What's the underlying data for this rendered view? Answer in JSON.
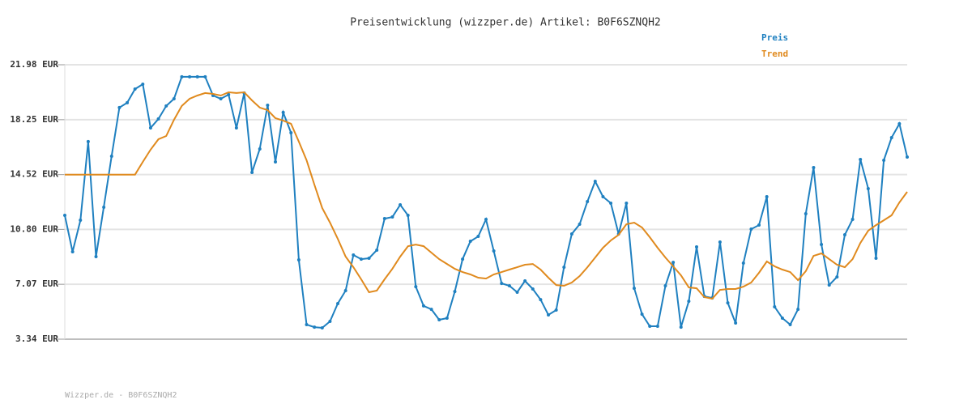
{
  "chart_data": {
    "type": "line",
    "title": "Preisentwicklung (wizzper.de) Artikel: B0F6SZNQH2",
    "footer": "Wizzper.de - B0F6SZNQH2",
    "ylim": [
      3.34,
      21.98
    ],
    "yticks": [
      {
        "value": 3.34,
        "label": "3.34 EUR"
      },
      {
        "value": 7.07,
        "label": "7.07 EUR"
      },
      {
        "value": 10.8,
        "label": "10.80 EUR"
      },
      {
        "value": 14.52,
        "label": "14.52 EUR"
      },
      {
        "value": 18.25,
        "label": "18.25 EUR"
      },
      {
        "value": 21.98,
        "label": "21.98 EUR"
      }
    ],
    "grid": true,
    "legend": "top-right",
    "series": [
      {
        "name": "Preis",
        "color": "#1f80c0",
        "markers": true,
        "values": [
          11.75,
          9.28,
          11.42,
          16.76,
          8.95,
          12.3,
          15.77,
          19.07,
          19.4,
          20.33,
          20.66,
          17.69,
          18.3,
          19.18,
          19.67,
          21.16,
          21.16,
          21.16,
          21.16,
          19.89,
          19.67,
          19.95,
          17.69,
          20.06,
          14.67,
          16.26,
          19.23,
          15.38,
          18.74,
          17.36,
          8.73,
          4.33,
          4.16,
          4.11,
          4.55,
          5.76,
          6.64,
          9.06,
          8.78,
          8.84,
          9.39,
          11.53,
          11.64,
          12.47,
          11.75,
          6.91,
          5.6,
          5.37,
          4.66,
          4.77,
          6.58,
          8.78,
          9.99,
          10.32,
          11.48,
          9.33,
          7.13,
          6.97,
          6.53,
          7.3,
          6.75,
          6.03,
          4.99,
          5.32,
          8.23,
          10.49,
          11.15,
          12.69,
          14.06,
          13.02,
          12.58,
          10.49,
          12.58,
          6.8,
          5.04,
          4.22,
          4.22,
          6.97,
          8.56,
          4.16,
          5.92,
          9.61,
          6.25,
          6.14,
          9.94,
          5.81,
          4.44,
          8.51,
          10.82,
          11.09,
          13.02,
          5.54,
          4.77,
          4.33,
          5.37,
          11.86,
          15.0,
          9.77,
          7.02,
          7.57,
          10.43,
          11.48,
          15.55,
          13.57,
          8.84,
          15.49,
          17.03,
          17.97,
          15.71
        ]
      },
      {
        "name": "Trend",
        "color": "#e08a1e",
        "markers": false,
        "values": [
          14.52,
          14.52,
          14.52,
          14.52,
          14.52,
          14.52,
          14.52,
          14.52,
          14.52,
          14.52,
          15.38,
          16.21,
          16.92,
          17.14,
          18.24,
          19.18,
          19.67,
          19.89,
          20.06,
          20.0,
          19.89,
          20.11,
          20.06,
          20.11,
          19.56,
          19.07,
          18.9,
          18.35,
          18.19,
          17.97,
          16.76,
          15.49,
          13.84,
          12.25,
          11.26,
          10.16,
          8.95,
          8.23,
          7.41,
          6.53,
          6.64,
          7.41,
          8.12,
          8.95,
          9.66,
          9.77,
          9.66,
          9.22,
          8.78,
          8.45,
          8.12,
          7.9,
          7.74,
          7.52,
          7.46,
          7.74,
          7.9,
          8.07,
          8.23,
          8.4,
          8.45,
          8.07,
          7.52,
          7.02,
          6.97,
          7.19,
          7.63,
          8.23,
          8.89,
          9.55,
          10.05,
          10.43,
          11.15,
          11.26,
          10.93,
          10.27,
          9.55,
          8.89,
          8.29,
          7.68,
          6.86,
          6.8,
          6.2,
          6.09,
          6.69,
          6.75,
          6.75,
          6.91,
          7.19,
          7.85,
          8.62,
          8.29,
          8.07,
          7.9,
          7.35,
          7.96,
          9.0,
          9.17,
          8.78,
          8.4,
          8.23,
          8.78,
          9.88,
          10.71,
          11.09,
          11.42,
          11.75,
          12.63,
          13.35
        ]
      }
    ]
  }
}
